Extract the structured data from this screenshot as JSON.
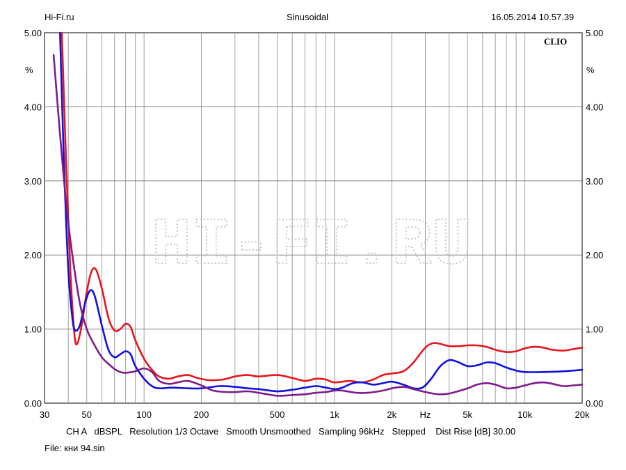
{
  "header": {
    "left": "Hi-Fi.ru",
    "center": "Sinusoidal",
    "right": "16.05.2014 10.57.39"
  },
  "brand": "CLIO",
  "watermark": "HI-FI.RU",
  "footer": {
    "settings": "CH A   dBSPL   Resolution 1/3 Octave   Smooth Unsmoothed   Sampling 96kHz   Stepped    Dist Rise [dB] 30.00",
    "file": "File: кни 94.sin"
  },
  "chart_data": {
    "type": "line",
    "x_scale": "log",
    "xlim": [
      30,
      20000
    ],
    "ylim": [
      0,
      5
    ],
    "grid": true,
    "y_unit": "%",
    "x_unit": "Hz",
    "y_ticks": [
      "0.00",
      "1.00",
      "2.00",
      "3.00",
      "4.00",
      "5.00"
    ],
    "y_tick_values": [
      0,
      1,
      2,
      3,
      4,
      5
    ],
    "x_ticks": [
      {
        "value": 30,
        "label": "30"
      },
      {
        "value": 50,
        "label": "50"
      },
      {
        "value": 100,
        "label": "100"
      },
      {
        "value": 200,
        "label": "200"
      },
      {
        "value": 500,
        "label": "500"
      },
      {
        "value": 1000,
        "label": "1k"
      },
      {
        "value": 2000,
        "label": "2k"
      },
      {
        "value": 3000,
        "label": "Hz"
      },
      {
        "value": 5000,
        "label": "5k"
      },
      {
        "value": 10000,
        "label": "10k"
      },
      {
        "value": 20000,
        "label": "20k"
      }
    ],
    "series": [
      {
        "color": "#e8141b",
        "points": [
          [
            37,
            5.0
          ],
          [
            39,
            3.2
          ],
          [
            41,
            1.8
          ],
          [
            43,
            0.95
          ],
          [
            44.5,
            0.8
          ],
          [
            47,
            1.05
          ],
          [
            50,
            1.5
          ],
          [
            53,
            1.78
          ],
          [
            56,
            1.8
          ],
          [
            60,
            1.55
          ],
          [
            65,
            1.15
          ],
          [
            70,
            0.98
          ],
          [
            75,
            1.0
          ],
          [
            80,
            1.07
          ],
          [
            85,
            1.03
          ],
          [
            90,
            0.85
          ],
          [
            100,
            0.6
          ],
          [
            110,
            0.45
          ],
          [
            120,
            0.36
          ],
          [
            135,
            0.33
          ],
          [
            150,
            0.36
          ],
          [
            170,
            0.38
          ],
          [
            190,
            0.34
          ],
          [
            220,
            0.31
          ],
          [
            260,
            0.32
          ],
          [
            300,
            0.36
          ],
          [
            350,
            0.38
          ],
          [
            400,
            0.36
          ],
          [
            500,
            0.38
          ],
          [
            600,
            0.34
          ],
          [
            700,
            0.3
          ],
          [
            800,
            0.33
          ],
          [
            900,
            0.32
          ],
          [
            1000,
            0.28
          ],
          [
            1200,
            0.3
          ],
          [
            1400,
            0.28
          ],
          [
            1600,
            0.32
          ],
          [
            1800,
            0.38
          ],
          [
            2000,
            0.4
          ],
          [
            2300,
            0.43
          ],
          [
            2600,
            0.55
          ],
          [
            3000,
            0.75
          ],
          [
            3300,
            0.81
          ],
          [
            3600,
            0.8
          ],
          [
            4000,
            0.77
          ],
          [
            4500,
            0.77
          ],
          [
            5000,
            0.78
          ],
          [
            5600,
            0.78
          ],
          [
            6300,
            0.76
          ],
          [
            7000,
            0.72
          ],
          [
            8000,
            0.69
          ],
          [
            9000,
            0.7
          ],
          [
            10000,
            0.74
          ],
          [
            11200,
            0.76
          ],
          [
            12500,
            0.75
          ],
          [
            14000,
            0.72
          ],
          [
            16000,
            0.71
          ],
          [
            18000,
            0.73
          ],
          [
            20000,
            0.75
          ]
        ]
      },
      {
        "color": "#1010e0",
        "points": [
          [
            36.2,
            5.0
          ],
          [
            38,
            3.2
          ],
          [
            40,
            1.8
          ],
          [
            42,
            1.15
          ],
          [
            43.5,
            0.98
          ],
          [
            46,
            1.05
          ],
          [
            49,
            1.35
          ],
          [
            52,
            1.52
          ],
          [
            55,
            1.45
          ],
          [
            60,
            1.05
          ],
          [
            65,
            0.72
          ],
          [
            70,
            0.62
          ],
          [
            75,
            0.66
          ],
          [
            80,
            0.7
          ],
          [
            85,
            0.66
          ],
          [
            90,
            0.5
          ],
          [
            100,
            0.33
          ],
          [
            110,
            0.23
          ],
          [
            120,
            0.2
          ],
          [
            140,
            0.21
          ],
          [
            170,
            0.2
          ],
          [
            200,
            0.2
          ],
          [
            250,
            0.23
          ],
          [
            300,
            0.22
          ],
          [
            350,
            0.2
          ],
          [
            400,
            0.19
          ],
          [
            500,
            0.16
          ],
          [
            600,
            0.18
          ],
          [
            700,
            0.21
          ],
          [
            800,
            0.23
          ],
          [
            900,
            0.21
          ],
          [
            1000,
            0.19
          ],
          [
            1100,
            0.21
          ],
          [
            1250,
            0.27
          ],
          [
            1400,
            0.28
          ],
          [
            1600,
            0.25
          ],
          [
            1800,
            0.27
          ],
          [
            2000,
            0.29
          ],
          [
            2300,
            0.25
          ],
          [
            2600,
            0.2
          ],
          [
            2900,
            0.21
          ],
          [
            3200,
            0.32
          ],
          [
            3600,
            0.5
          ],
          [
            4000,
            0.58
          ],
          [
            4400,
            0.56
          ],
          [
            5000,
            0.5
          ],
          [
            5600,
            0.51
          ],
          [
            6300,
            0.55
          ],
          [
            7000,
            0.54
          ],
          [
            8000,
            0.48
          ],
          [
            9000,
            0.44
          ],
          [
            10000,
            0.42
          ],
          [
            12500,
            0.42
          ],
          [
            16000,
            0.43
          ],
          [
            20000,
            0.45
          ]
        ]
      },
      {
        "color": "#7e1a8c",
        "points": [
          [
            33.5,
            4.7
          ],
          [
            36,
            3.7
          ],
          [
            39,
            2.7
          ],
          [
            42,
            2.0
          ],
          [
            46,
            1.35
          ],
          [
            50,
            1.0
          ],
          [
            55,
            0.78
          ],
          [
            60,
            0.62
          ],
          [
            65,
            0.53
          ],
          [
            70,
            0.46
          ],
          [
            75,
            0.42
          ],
          [
            80,
            0.41
          ],
          [
            90,
            0.43
          ],
          [
            100,
            0.47
          ],
          [
            110,
            0.42
          ],
          [
            120,
            0.3
          ],
          [
            135,
            0.26
          ],
          [
            150,
            0.28
          ],
          [
            170,
            0.3
          ],
          [
            200,
            0.24
          ],
          [
            230,
            0.17
          ],
          [
            270,
            0.15
          ],
          [
            300,
            0.15
          ],
          [
            350,
            0.16
          ],
          [
            400,
            0.14
          ],
          [
            500,
            0.1
          ],
          [
            600,
            0.11
          ],
          [
            700,
            0.12
          ],
          [
            800,
            0.14
          ],
          [
            900,
            0.15
          ],
          [
            1000,
            0.17
          ],
          [
            1100,
            0.17
          ],
          [
            1300,
            0.14
          ],
          [
            1500,
            0.14
          ],
          [
            1800,
            0.17
          ],
          [
            2000,
            0.2
          ],
          [
            2300,
            0.22
          ],
          [
            2600,
            0.19
          ],
          [
            3000,
            0.15
          ],
          [
            3500,
            0.12
          ],
          [
            4000,
            0.13
          ],
          [
            5000,
            0.2
          ],
          [
            5600,
            0.25
          ],
          [
            6300,
            0.27
          ],
          [
            7000,
            0.25
          ],
          [
            8000,
            0.2
          ],
          [
            9000,
            0.21
          ],
          [
            10000,
            0.24
          ],
          [
            11200,
            0.27
          ],
          [
            12500,
            0.28
          ],
          [
            14000,
            0.26
          ],
          [
            16000,
            0.23
          ],
          [
            18000,
            0.24
          ],
          [
            20000,
            0.25
          ]
        ]
      }
    ]
  }
}
